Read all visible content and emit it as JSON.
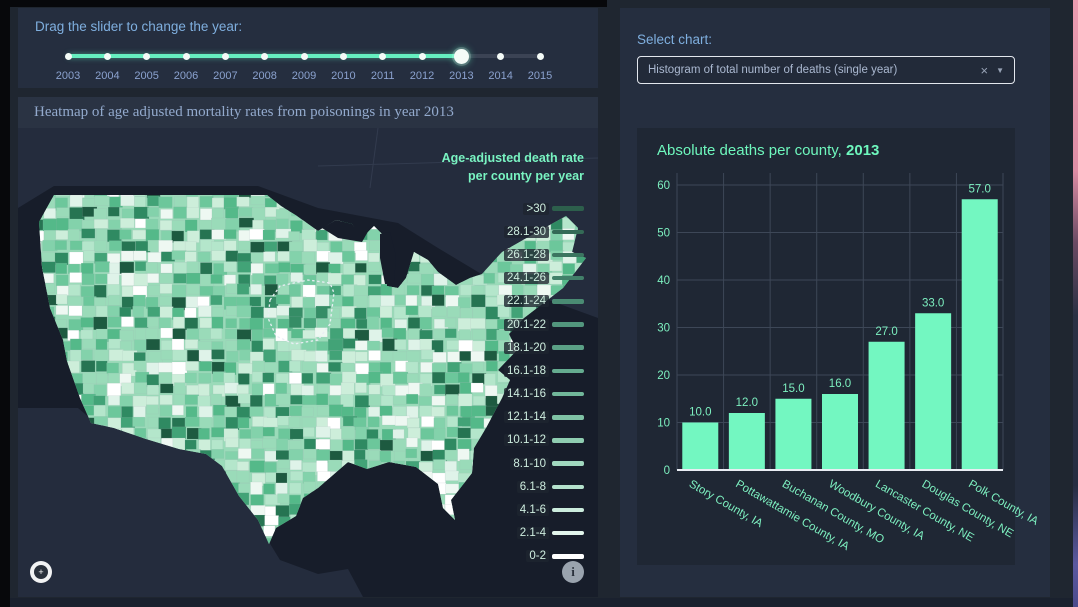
{
  "theme": {
    "page_bg": "#1f2630",
    "card_bg": "#252e3f",
    "chart_paper_bg": "#1f2734",
    "accent_blue": "#7fafdf",
    "accent_mint": "#79f4c2",
    "grid_color": "#3d4757",
    "zero_line_color": "#e9edf3",
    "map_water": "#171d2a",
    "map_land": "#242c3d",
    "slider_fill": "#66efc0"
  },
  "slider": {
    "label": "Drag the slider to change the year:",
    "years": [
      "2003",
      "2004",
      "2005",
      "2006",
      "2007",
      "2008",
      "2009",
      "2010",
      "2011",
      "2012",
      "2013",
      "2014",
      "2015"
    ],
    "selected_year": "2013"
  },
  "heatmap": {
    "title": "Heatmap of age adjusted mortality rates from poisonings in year 2013",
    "legend_title": [
      "Age-adjusted death rate",
      "per county per year"
    ],
    "legend": [
      {
        "label": ">30",
        "color": "#2d5f4c"
      },
      {
        "label": "28.1-30",
        "color": "#346a56"
      },
      {
        "label": "26.1-28",
        "color": "#3b7560"
      },
      {
        "label": "24.1-26",
        "color": "#42806a"
      },
      {
        "label": "22.1-24",
        "color": "#4a8b73"
      },
      {
        "label": "20.1-22",
        "color": "#52967d"
      },
      {
        "label": "18.1-20",
        "color": "#5ba186"
      },
      {
        "label": "16.1-18",
        "color": "#65ac90"
      },
      {
        "label": "14.1-16",
        "color": "#71b79a"
      },
      {
        "label": "12.1-14",
        "color": "#7fc2a5"
      },
      {
        "label": "10.1-12",
        "color": "#8fcdb1"
      },
      {
        "label": "8.1-10",
        "color": "#a1d8bf"
      },
      {
        "label": "6.1-8",
        "color": "#b5e2cd"
      },
      {
        "label": "4.1-6",
        "color": "#cbecdd"
      },
      {
        "label": "2.1-4",
        "color": "#e2f5ec"
      },
      {
        "label": "0-2",
        "color": "#ffffff"
      }
    ],
    "county_palette": [
      "#ffffff",
      "#eef8f2",
      "#dff3e9",
      "#cdeeda",
      "#cdeeda",
      "#b4e6cb",
      "#b4e6cb",
      "#9adbb9",
      "#9adbb9",
      "#9adbb9",
      "#83d2ab",
      "#83d2ab",
      "#6cc79b",
      "#6cc79b",
      "#54b989",
      "#54b989",
      "#42a377",
      "#2f8a62",
      "#267452",
      "#1d5a40"
    ],
    "info_glyph": "i",
    "logo_glyph": "+"
  },
  "chart_panel": {
    "select_label": "Select chart:",
    "dropdown_value": "Histogram of total number of deaths (single year)",
    "clear_glyph": "×",
    "arrow_glyph": "▼"
  },
  "chart_data": {
    "type": "bar",
    "title": "Absolute deaths per county, 2013",
    "title_prefix": "Absolute deaths per county, ",
    "title_year": "2013",
    "categories": [
      "Story County, IA",
      "Pottawattamie County, IA",
      "Buchanan County, MO",
      "Woodbury County, IA",
      "Lancaster County, NE",
      "Douglas County, NE",
      "Polk County, IA"
    ],
    "values": [
      10.0,
      12.0,
      15.0,
      16.0,
      27.0,
      33.0,
      57.0
    ],
    "value_labels": [
      "10.0",
      "12.0",
      "15.0",
      "16.0",
      "27.0",
      "33.0",
      "57.0"
    ],
    "xlabel": "",
    "ylabel": "",
    "ylim": [
      0,
      60
    ],
    "yticks": [
      0,
      10,
      20,
      30,
      40,
      50,
      60
    ],
    "grid": true,
    "legend_position": "none",
    "tick_angle": 30,
    "bar_color": "#73f7c1",
    "text_color": "#7df0c0"
  }
}
